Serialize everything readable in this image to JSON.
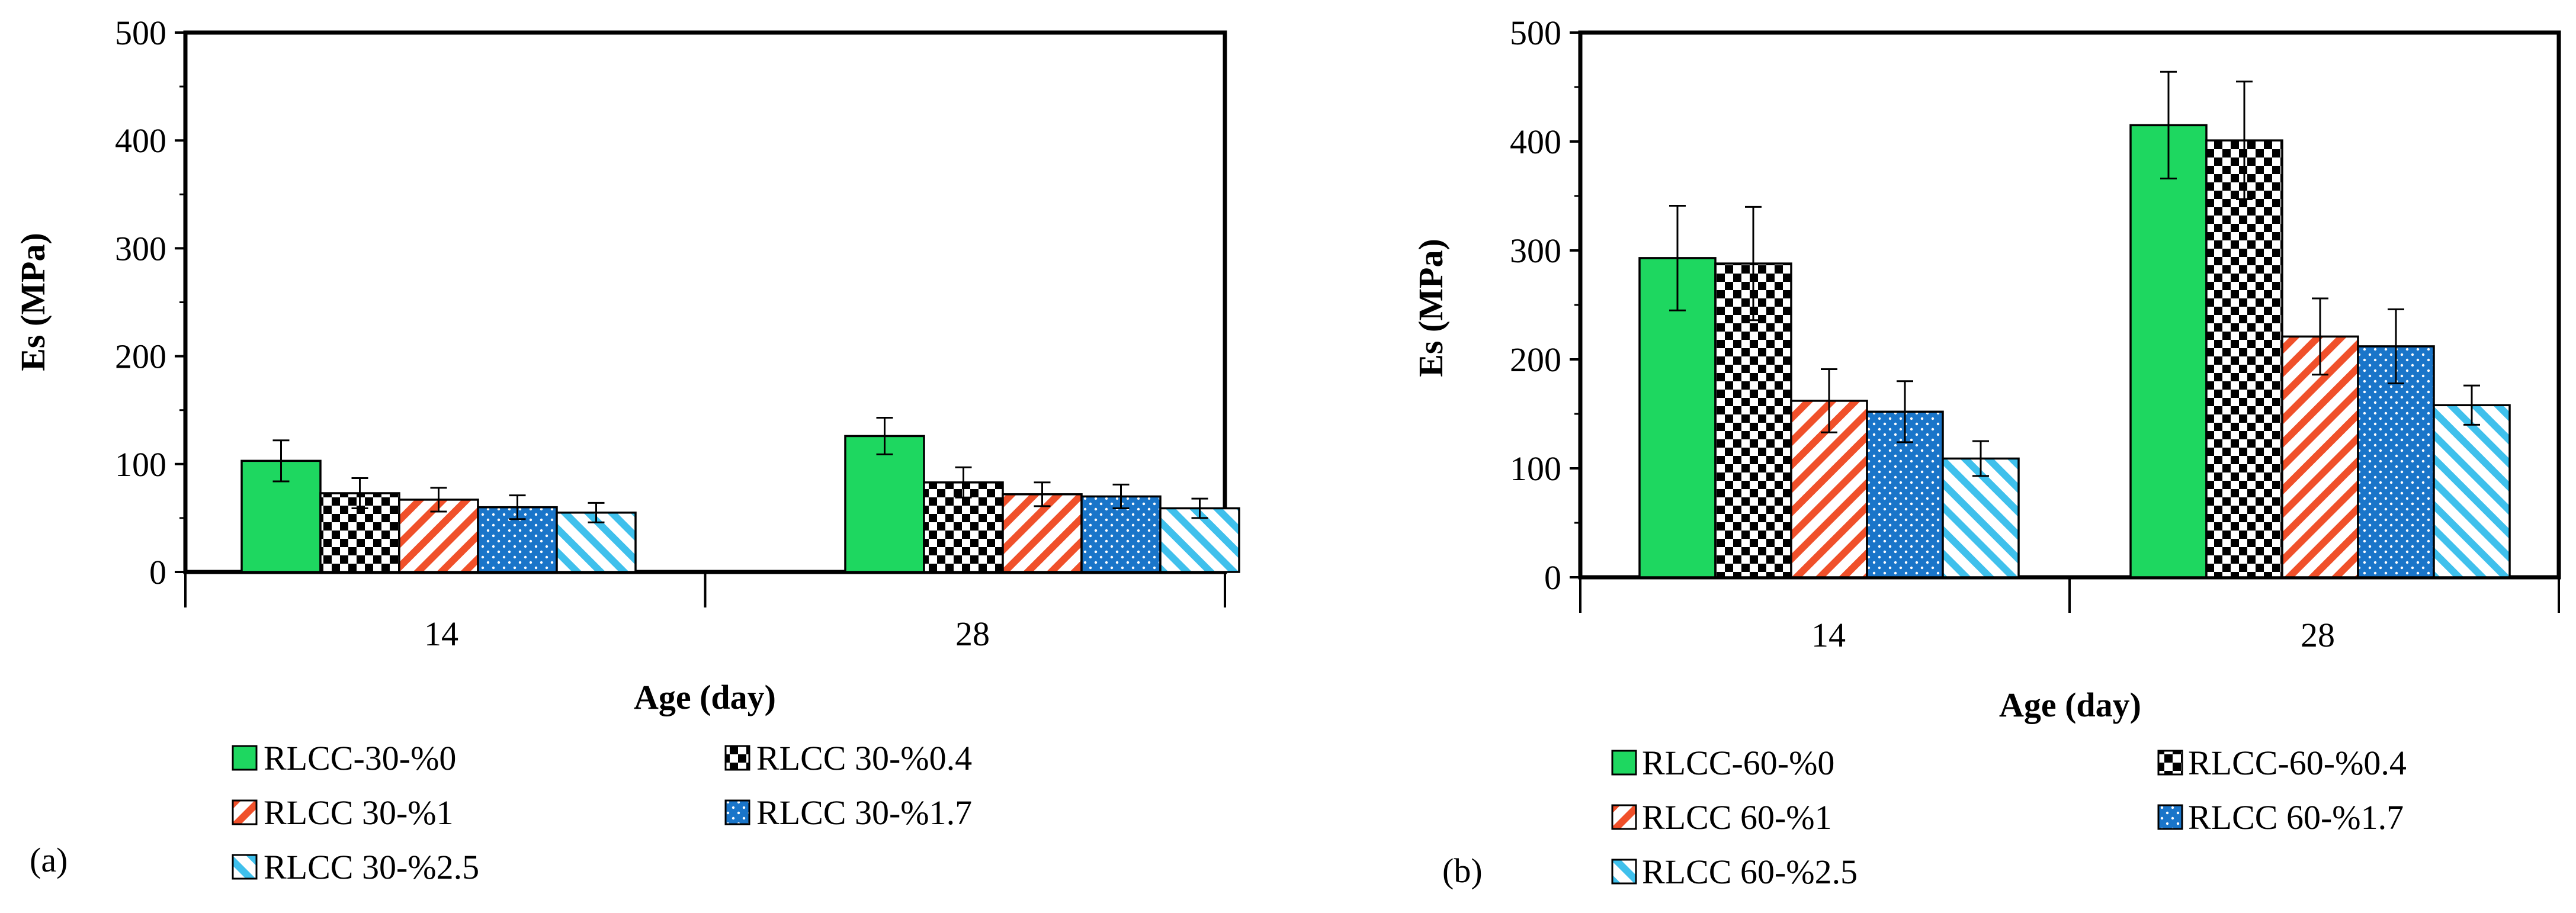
{
  "chart_data": [
    {
      "type": "bar",
      "panel_label": "(a)",
      "title": "",
      "xlabel": "Age (day)",
      "ylabel": "Es (MPa)",
      "ylim": [
        0,
        500
      ],
      "yticks": [
        "0",
        "100",
        "200",
        "300",
        "400",
        "500"
      ],
      "categories": [
        "14",
        "28"
      ],
      "legend_position": "bottom",
      "series": [
        {
          "name": "RLCC-30-%0",
          "pattern": "solid-green",
          "values": [
            103,
            126
          ],
          "errors": [
            19,
            17
          ]
        },
        {
          "name": "RLCC 30-%0.4",
          "pattern": "checker",
          "values": [
            73,
            83
          ],
          "errors": [
            14,
            14
          ]
        },
        {
          "name": "RLCC 30-%1",
          "pattern": "red-diagonal",
          "values": [
            67,
            72
          ],
          "errors": [
            11,
            11
          ]
        },
        {
          "name": "RLCC 30-%1.7",
          "pattern": "blue-dots",
          "values": [
            60,
            70
          ],
          "errors": [
            11,
            11
          ]
        },
        {
          "name": "RLCC 30-%2.5",
          "pattern": "cyan-diagonal",
          "values": [
            55,
            59
          ],
          "errors": [
            9,
            9
          ]
        }
      ]
    },
    {
      "type": "bar",
      "panel_label": "(b)",
      "title": "",
      "xlabel": "Age (day)",
      "ylabel": "Es (MPa)",
      "ylim": [
        0,
        500
      ],
      "yticks": [
        "0",
        "100",
        "200",
        "300",
        "400",
        "500"
      ],
      "categories": [
        "14",
        "28"
      ],
      "legend_position": "bottom",
      "series": [
        {
          "name": "RLCC-60-%0",
          "pattern": "solid-green",
          "values": [
            293,
            415
          ],
          "errors": [
            48,
            49
          ]
        },
        {
          "name": "RLCC-60-%0.4",
          "pattern": "checker",
          "values": [
            288,
            401
          ],
          "errors": [
            52,
            54
          ]
        },
        {
          "name": "RLCC 60-%1",
          "pattern": "red-diagonal",
          "values": [
            162,
            221
          ],
          "errors": [
            29,
            35
          ]
        },
        {
          "name": "RLCC 60-%1.7",
          "pattern": "blue-dots",
          "values": [
            152,
            212
          ],
          "errors": [
            28,
            34
          ]
        },
        {
          "name": "RLCC 60-%2.5",
          "pattern": "cyan-diagonal",
          "values": [
            109,
            158
          ],
          "errors": [
            16,
            18
          ]
        }
      ]
    }
  ],
  "colors": {
    "green": "#1ed760",
    "red": "#f0502a",
    "blue": "#1a75c9",
    "cyan": "#3fc0ec",
    "black": "#000000",
    "white": "#ffffff"
  }
}
